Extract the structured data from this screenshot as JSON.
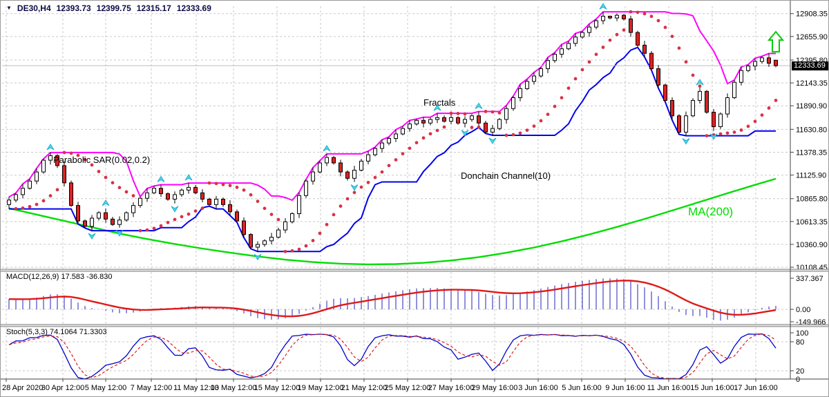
{
  "header": {
    "symbol_period": "DE30,H4",
    "open": "12393.73",
    "high": "12399.75",
    "low": "12315.17",
    "close": "12333.69"
  },
  "annotations": {
    "psar": "Parabolic SAR(0.02,0.2)",
    "fractals": "Fractals",
    "donchian": "Donchain Channel(10)",
    "ma": "MA(200)"
  },
  "indicator_labels": {
    "macd": "MACD(12,26,9) 17.583 -36.830",
    "stoch": "Stoch(5,3,3) 74.1064 71.3303"
  },
  "price_axis": {
    "ticks": [
      "12908.35",
      "12655.90",
      "12395.80",
      "12143.35",
      "11890.90",
      "11630.80",
      "11378.35",
      "11125.90",
      "10865.80",
      "10613.35",
      "10360.90",
      "10108.45"
    ],
    "current": "12333.69"
  },
  "macd_axis": {
    "ticks": [
      [
        "337.367",
        402
      ],
      [
        "0.00",
        447
      ],
      [
        "-149.966",
        465
      ]
    ]
  },
  "stoch_axis": {
    "ticks": [
      [
        "100",
        481
      ],
      [
        "80",
        494
      ],
      [
        "20",
        536
      ],
      [
        "0",
        548
      ]
    ],
    "levels": [
      80,
      20
    ]
  },
  "time_axis": {
    "ticks": [
      [
        "28 Apr 2020",
        8
      ],
      [
        "30 Apr 12:00",
        90
      ],
      [
        "5 May 12:00",
        152
      ],
      [
        "7 May 12:00",
        218
      ],
      [
        "11 May 12:00",
        283
      ],
      [
        "13 May 12:00",
        337
      ],
      [
        "15 May 12:00",
        400
      ],
      [
        "19 May 12:00",
        463
      ],
      [
        "21 May 12:00",
        526
      ],
      [
        "25 May 12:00",
        589
      ],
      [
        "27 May 16:00",
        652
      ],
      [
        "29 May 16:00",
        715
      ],
      [
        "3 Jun 16:00",
        778
      ],
      [
        "5 Jun 16:00",
        841
      ],
      [
        "9 Jun 16:00",
        904
      ],
      [
        "11 Jun 16:00",
        967
      ],
      [
        "15 Jun 16:00",
        1030
      ],
      [
        "17 Jun 16:00",
        1093
      ]
    ]
  },
  "colors": {
    "header_text": "#0a0a46",
    "grid": "#c9c9c9",
    "candle_up": "#ffffff",
    "candle_down": "#dd2222",
    "candle_border": "#000000",
    "psar": "#d83246",
    "donchian_upper": "#ff00ff",
    "donchian_lower": "#0000ee",
    "ma200": "#00dd00",
    "fractal": "#58d4e8",
    "fractal_edge": "#19b3cf",
    "macd_hist": "#2020b8",
    "macd_signal": "#e01818",
    "stoch_k": "#0000c8",
    "stoch_d": "#d82020",
    "bid_line": "#bdbdbd",
    "axis_text": "#000000",
    "separator": "#808080",
    "buy_arrow": "#00cc00"
  },
  "chart_data": {
    "type": "candlestick",
    "symbol": "DE30",
    "timeframe": "H4",
    "ylim": [
      10086,
      12990
    ],
    "indicators": {
      "parabolic_sar": {
        "step": 0.02,
        "max": 0.2
      },
      "donchian_period": 10,
      "ma_period": 200,
      "macd": [
        12,
        26,
        9
      ],
      "stoch": [
        5,
        3,
        3
      ],
      "fractals": true
    },
    "macd_current": [
      17.583,
      -36.83
    ],
    "stoch_current": [
      74.1064,
      71.3303
    ],
    "candles": [
      [
        10800,
        10885,
        10752,
        10850
      ],
      [
        10850,
        10928,
        10825,
        10910
      ],
      [
        10910,
        11028,
        10870,
        10980
      ],
      [
        10980,
        11085,
        10965,
        11060
      ],
      [
        11060,
        11200,
        11025,
        11160
      ],
      [
        11160,
        11305,
        11142,
        11290
      ],
      [
        11290,
        11375,
        11242,
        11340
      ],
      [
        11340,
        11358,
        11205,
        11230
      ],
      [
        11230,
        11278,
        11000,
        11040
      ],
      [
        11040,
        11065,
        10775,
        10790
      ],
      [
        10790,
        10830,
        10585,
        10620
      ],
      [
        10620,
        10635,
        10542,
        10560
      ],
      [
        10560,
        10685,
        10512,
        10650
      ],
      [
        10650,
        10728,
        10625,
        10710
      ],
      [
        10710,
        10758,
        10600,
        10640
      ],
      [
        10640,
        10665,
        10565,
        10580
      ],
      [
        10580,
        10670,
        10545,
        10630
      ],
      [
        10630,
        10725,
        10612,
        10710
      ],
      [
        10710,
        10825,
        10662,
        10790
      ],
      [
        10790,
        10888,
        10765,
        10870
      ],
      [
        10870,
        10978,
        10830,
        10930
      ],
      [
        10930,
        11005,
        10915,
        10980
      ],
      [
        10980,
        11020,
        10885,
        10920
      ],
      [
        10920,
        10935,
        10842,
        10860
      ],
      [
        10860,
        10945,
        10812,
        10910
      ],
      [
        10910,
        10978,
        10885,
        10960
      ],
      [
        10960,
        11038,
        10920,
        10990
      ],
      [
        10990,
        11015,
        10915,
        10930
      ],
      [
        10930,
        10970,
        10825,
        10860
      ],
      [
        10860,
        10875,
        10782,
        10800
      ],
      [
        10800,
        10895,
        10752,
        10860
      ],
      [
        10860,
        10878,
        10775,
        10800
      ],
      [
        10800,
        10848,
        10680,
        10720
      ],
      [
        10720,
        10745,
        10605,
        10620
      ],
      [
        10620,
        10660,
        10435,
        10470
      ],
      [
        10470,
        10485,
        10312,
        10330
      ],
      [
        10330,
        10395,
        10282,
        10360
      ],
      [
        10360,
        10418,
        10335,
        10400
      ],
      [
        10400,
        10488,
        10360,
        10440
      ],
      [
        10440,
        10545,
        10425,
        10520
      ],
      [
        10520,
        10650,
        10485,
        10610
      ],
      [
        10610,
        10715,
        10592,
        10700
      ],
      [
        10700,
        10935,
        10652,
        10900
      ],
      [
        10900,
        11078,
        10875,
        11060
      ],
      [
        11060,
        11208,
        11020,
        11160
      ],
      [
        11160,
        11285,
        11145,
        11260
      ],
      [
        11260,
        11360,
        11225,
        11320
      ],
      [
        11320,
        11335,
        11242,
        11260
      ],
      [
        11260,
        11295,
        11112,
        11160
      ],
      [
        11160,
        11178,
        11065,
        11090
      ],
      [
        11090,
        11228,
        11050,
        11180
      ],
      [
        11180,
        11305,
        11165,
        11280
      ],
      [
        11280,
        11390,
        11245,
        11350
      ],
      [
        11350,
        11435,
        11332,
        11420
      ],
      [
        11420,
        11515,
        11372,
        11480
      ],
      [
        11480,
        11548,
        11455,
        11530
      ],
      [
        11530,
        11628,
        11490,
        11580
      ],
      [
        11580,
        11665,
        11565,
        11640
      ],
      [
        11640,
        11730,
        11605,
        11690
      ],
      [
        11690,
        11745,
        11672,
        11730
      ],
      [
        11730,
        11765,
        11652,
        11700
      ],
      [
        11700,
        11758,
        11675,
        11740
      ],
      [
        11740,
        11808,
        11700,
        11760
      ],
      [
        11760,
        11785,
        11705,
        11720
      ],
      [
        11720,
        11800,
        11685,
        11760
      ],
      [
        11760,
        11775,
        11682,
        11700
      ],
      [
        11700,
        11775,
        11652,
        11740
      ],
      [
        11740,
        11798,
        11715,
        11780
      ],
      [
        11780,
        11828,
        11660,
        11700
      ],
      [
        11700,
        11725,
        11585,
        11600
      ],
      [
        11600,
        11680,
        11565,
        11640
      ],
      [
        11640,
        11755,
        11622,
        11740
      ],
      [
        11740,
        11895,
        11692,
        11860
      ],
      [
        11860,
        11998,
        11835,
        11980
      ],
      [
        11980,
        12128,
        11940,
        12080
      ],
      [
        12080,
        12185,
        12065,
        12160
      ],
      [
        12160,
        12260,
        12125,
        12220
      ],
      [
        12220,
        12315,
        12202,
        12300
      ],
      [
        12300,
        12425,
        12252,
        12390
      ],
      [
        12390,
        12478,
        12365,
        12460
      ],
      [
        12460,
        12568,
        12420,
        12520
      ],
      [
        12520,
        12605,
        12505,
        12580
      ],
      [
        12580,
        12690,
        12545,
        12650
      ],
      [
        12650,
        12715,
        12632,
        12700
      ],
      [
        12700,
        12795,
        12652,
        12760
      ],
      [
        12760,
        12848,
        12735,
        12830
      ],
      [
        12830,
        12928,
        12790,
        12880
      ],
      [
        12880,
        12885,
        12845,
        12860
      ],
      [
        12860,
        12910,
        12825,
        12890
      ],
      [
        12890,
        12905,
        12832,
        12850
      ],
      [
        12850,
        12885,
        12652,
        12700
      ],
      [
        12700,
        12718,
        12535,
        12560
      ],
      [
        12560,
        12608,
        12430,
        12470
      ],
      [
        12470,
        12495,
        12285,
        12300
      ],
      [
        12300,
        12340,
        12085,
        12120
      ],
      [
        12120,
        12135,
        11932,
        11950
      ],
      [
        11950,
        11985,
        11732,
        11780
      ],
      [
        11780,
        11798,
        11575,
        11600
      ],
      [
        11600,
        11828,
        11560,
        11780
      ],
      [
        11780,
        11975,
        11765,
        11950
      ],
      [
        11950,
        12090,
        11915,
        12050
      ],
      [
        12050,
        12065,
        11802,
        11820
      ],
      [
        11820,
        11855,
        11612,
        11660
      ],
      [
        11660,
        11818,
        11635,
        11800
      ],
      [
        11800,
        12028,
        11760,
        11980
      ],
      [
        11980,
        12175,
        11965,
        12150
      ],
      [
        12150,
        12320,
        12115,
        12280
      ],
      [
        12280,
        12345,
        12262,
        12330
      ],
      [
        12330,
        12415,
        12282,
        12380
      ],
      [
        12380,
        12438,
        12355,
        12420
      ],
      [
        12420,
        12468,
        12320,
        12360
      ],
      [
        12393.73,
        12399.75,
        12315.17,
        12333.69
      ]
    ],
    "ma200_points": [
      [
        0,
        10760
      ],
      [
        4,
        10690
      ],
      [
        8,
        10620
      ],
      [
        12,
        10550
      ],
      [
        16,
        10480
      ],
      [
        20,
        10420
      ],
      [
        24,
        10365
      ],
      [
        28,
        10315
      ],
      [
        32,
        10270
      ],
      [
        36,
        10228
      ],
      [
        40,
        10192
      ],
      [
        44,
        10165
      ],
      [
        48,
        10148
      ],
      [
        52,
        10140
      ],
      [
        56,
        10143
      ],
      [
        60,
        10157
      ],
      [
        64,
        10183
      ],
      [
        68,
        10220
      ],
      [
        72,
        10268
      ],
      [
        76,
        10326
      ],
      [
        80,
        10394
      ],
      [
        84,
        10470
      ],
      [
        88,
        10553
      ],
      [
        92,
        10642
      ],
      [
        96,
        10735
      ],
      [
        100,
        10830
      ],
      [
        104,
        10925
      ],
      [
        108,
        11018
      ],
      [
        111,
        11085
      ]
    ]
  }
}
